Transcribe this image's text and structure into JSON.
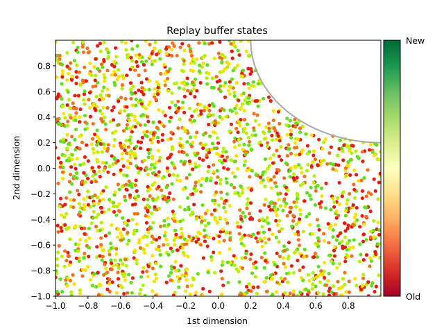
{
  "chart_data": {
    "type": "scatter",
    "title": "Replay buffer states",
    "xlabel": "1st dimension",
    "ylabel": "2nd dimension",
    "xlim": [
      -1.0,
      1.0
    ],
    "ylim": [
      -1.0,
      1.0
    ],
    "x_ticks": [
      -1.0,
      -0.8,
      -0.6,
      -0.4,
      -0.2,
      0.0,
      0.2,
      0.4,
      0.6,
      0.8
    ],
    "x_tick_labels": [
      "−1.0",
      "−0.8",
      "−0.6",
      "−0.4",
      "−0.2",
      "0.0",
      "0.2",
      "0.4",
      "0.6",
      "0.8"
    ],
    "y_ticks": [
      -1.0,
      -0.8,
      -0.6,
      -0.4,
      -0.2,
      0.0,
      0.2,
      0.4,
      0.6,
      0.8
    ],
    "y_tick_labels": [
      "−1.0",
      "−0.8",
      "−0.6",
      "−0.4",
      "−0.2",
      "0.0",
      "0.2",
      "0.4",
      "0.6",
      "0.8"
    ],
    "grid": false,
    "colormap": {
      "name": "RdYlGn",
      "stops": [
        "#a50026",
        "#d73027",
        "#f46d43",
        "#fdae61",
        "#fee08b",
        "#ffffbf",
        "#d9ef8b",
        "#a6d96a",
        "#66bd63",
        "#1a9850",
        "#006837"
      ],
      "low_label": "Old",
      "high_label": "New"
    },
    "point_colors": [
      "#e61b0f",
      "#f4701b",
      "#fbe300",
      "#b7f000",
      "#60e01a"
    ],
    "point_count": 2200,
    "excluded_region": {
      "shape": "circle-arc",
      "center": [
        1.0,
        1.0
      ],
      "radius": 0.8,
      "edge_color": "#a8a8a8"
    }
  }
}
